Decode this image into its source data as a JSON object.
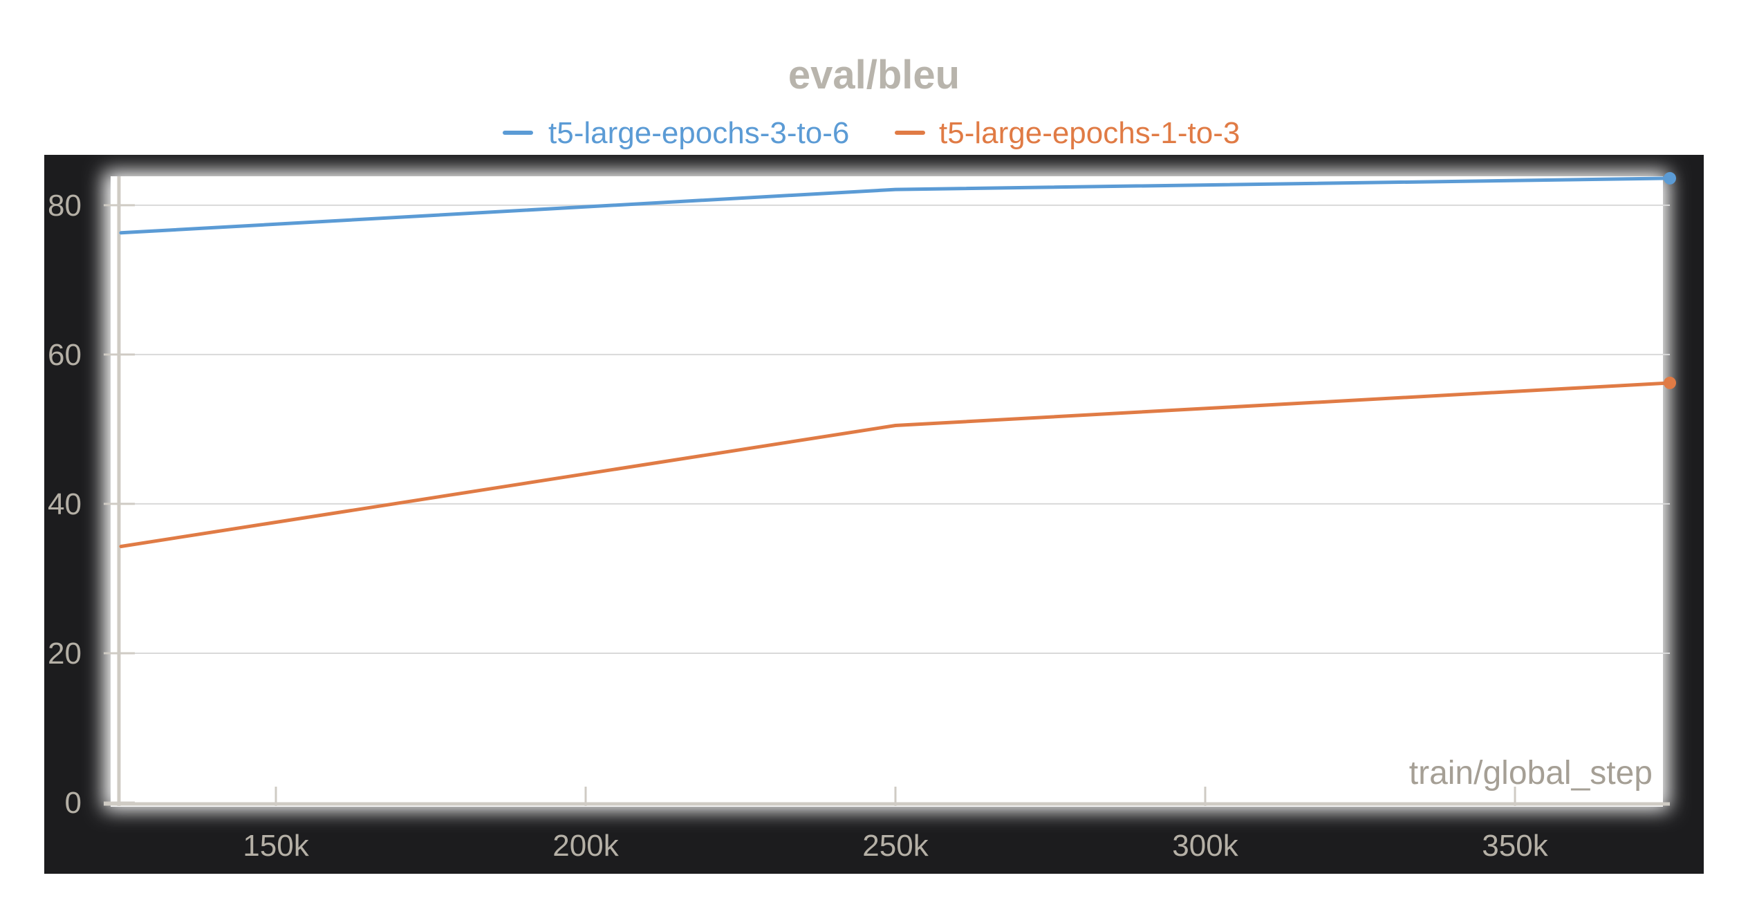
{
  "chart_data": {
    "type": "line",
    "title": "eval/bleu",
    "xlabel": "train/global_step",
    "ylabel": "",
    "xlim": [
      125000,
      375000
    ],
    "ylim": [
      0,
      86
    ],
    "x_ticks": [
      150000,
      200000,
      250000,
      300000,
      350000
    ],
    "x_tick_labels": [
      "150k",
      "200k",
      "250k",
      "300k",
      "350k"
    ],
    "y_ticks": [
      0,
      20,
      40,
      60,
      80
    ],
    "y_tick_labels": [
      "0",
      "20",
      "40",
      "60",
      "80"
    ],
    "grid": true,
    "legend_position": "top-center",
    "series": [
      {
        "name": "t5-large-epochs-3-to-6",
        "color": "#5b9bd5",
        "x": [
          125000,
          250000,
          375000
        ],
        "y": [
          76.3,
          82.1,
          83.6
        ]
      },
      {
        "name": "t5-large-epochs-1-to-3",
        "color": "#e07b45",
        "x": [
          125000,
          250000,
          375000
        ],
        "y": [
          34.3,
          50.5,
          56.2
        ]
      }
    ]
  },
  "colors": {
    "frame": "#1c1c1e",
    "plot_background": "#ffffff",
    "grid": "#d9d9d9",
    "axis": "#cfcbc4"
  }
}
